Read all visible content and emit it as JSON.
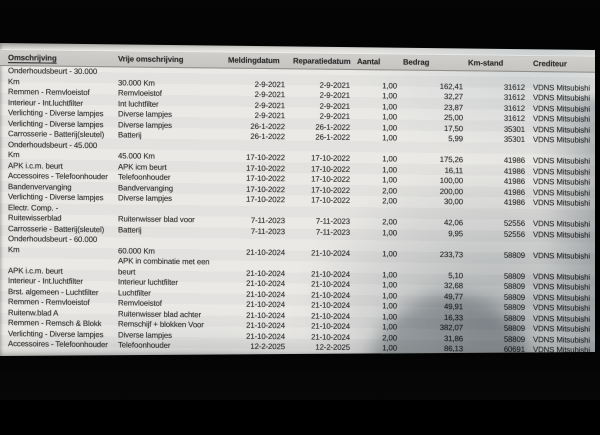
{
  "photo": {
    "colors": {
      "background": "#000000",
      "paper": "#e9e8e5",
      "header_band": "#c8c7c4",
      "text": "#3a3a3a",
      "reflection_shadow": "#36454f",
      "corner_tint": "#ccd1d4"
    }
  },
  "table": {
    "columns": [
      {
        "key": "omschrijving",
        "label": "Omschrijving"
      },
      {
        "key": "vrije",
        "label": "Vrije omschrijving"
      },
      {
        "key": "melding",
        "label": "Meldingdatum"
      },
      {
        "key": "reparatie",
        "label": "Reparatiedatum"
      },
      {
        "key": "aantal",
        "label": "Aantal"
      },
      {
        "key": "bedrag",
        "label": "Bedrag"
      },
      {
        "key": "kmstand",
        "label": "Km-stand"
      },
      {
        "key": "crediteur",
        "label": "Crediteur"
      }
    ],
    "rows": [
      {
        "omschrijving": "Onderhoudsbeurt - 30.000\nKm",
        "vrije": "30.000 Km",
        "melding": "2-9-2021",
        "reparatie": "2-9-2021",
        "aantal": "1,00",
        "bedrag": "162,41",
        "kmstand": "31612",
        "crediteur": "VDNS Mitsubishi"
      },
      {
        "omschrijving": "Remmen - Remvloeistof",
        "vrije": "Remvloeistof",
        "melding": "2-9-2021",
        "reparatie": "2-9-2021",
        "aantal": "1,00",
        "bedrag": "32,27",
        "kmstand": "31612",
        "crediteur": "VDNS Mitsubishi"
      },
      {
        "omschrijving": "Interieur - Int.luchtfilter",
        "vrije": "Int luchtfilter",
        "melding": "2-9-2021",
        "reparatie": "2-9-2021",
        "aantal": "1,00",
        "bedrag": "23,87",
        "kmstand": "31612",
        "crediteur": "VDNS Mitsubishi"
      },
      {
        "omschrijving": "Verlichting - Diverse lampjes",
        "vrije": "Diverse lampjes",
        "melding": "2-9-2021",
        "reparatie": "2-9-2021",
        "aantal": "1,00",
        "bedrag": "25,00",
        "kmstand": "31612",
        "crediteur": "VDNS Mitsubishi"
      },
      {
        "omschrijving": "Verlichting - Diverse lampjes",
        "vrije": "Diverse lampjes",
        "melding": "26-1-2022",
        "reparatie": "26-1-2022",
        "aantal": "1,00",
        "bedrag": "17,50",
        "kmstand": "35301",
        "crediteur": "VDNS Mitsubishi"
      },
      {
        "omschrijving": "Carrosserie - Batterij(sleutel)",
        "vrije": "Batterij",
        "melding": "26-1-2022",
        "reparatie": "26-1-2022",
        "aantal": "1,00",
        "bedrag": "5,99",
        "kmstand": "35301",
        "crediteur": "VDNS Mitsubishi"
      },
      {
        "omschrijving": "Onderhoudsbeurt - 45.000\nKm",
        "vrije": "45.000 Km",
        "melding": "17-10-2022",
        "reparatie": "17-10-2022",
        "aantal": "1,00",
        "bedrag": "175,26",
        "kmstand": "41986",
        "crediteur": "VDNS Mitsubishi"
      },
      {
        "omschrijving": "APK i.c.m. beurt",
        "vrije": "APK icm beurt",
        "melding": "17-10-2022",
        "reparatie": "17-10-2022",
        "aantal": "1,00",
        "bedrag": "16,11",
        "kmstand": "41986",
        "crediteur": "VDNS Mitsubishi"
      },
      {
        "omschrijving": "Accessoires - Telefoonhouder",
        "vrije": "Telefoonhouder",
        "melding": "17-10-2022",
        "reparatie": "17-10-2022",
        "aantal": "1,00",
        "bedrag": "100,00",
        "kmstand": "41986",
        "crediteur": "VDNS Mitsubishi"
      },
      {
        "omschrijving": "Bandenvervanging",
        "vrije": "Bandvervanging",
        "melding": "17-10-2022",
        "reparatie": "17-10-2022",
        "aantal": "2,00",
        "bedrag": "200,00",
        "kmstand": "41986",
        "crediteur": "VDNS Mitsubishi"
      },
      {
        "omschrijving": "Verlichting - Diverse lampjes",
        "vrije": "Diverse lampjes",
        "melding": "17-10-2022",
        "reparatie": "17-10-2022",
        "aantal": "2,00",
        "bedrag": "30,00",
        "kmstand": "41986",
        "crediteur": "VDNS Mitsubishi"
      },
      {
        "omschrijving": "Electr. Comp. -\nRuitewisserblad",
        "vrije": "Ruitenwisser blad voor",
        "melding": "7-11-2023",
        "reparatie": "7-11-2023",
        "aantal": "2,00",
        "bedrag": "42,06",
        "kmstand": "52556",
        "crediteur": "VDNS Mitsubishi"
      },
      {
        "omschrijving": "Carrosserie - Batterij(sleutel)",
        "vrije": "Batterij",
        "melding": "7-11-2023",
        "reparatie": "7-11-2023",
        "aantal": "1,00",
        "bedrag": "9,95",
        "kmstand": "52556",
        "crediteur": "VDNS Mitsubishi"
      },
      {
        "omschrijving": "Onderhoudsbeurt - 60.000\nKm",
        "vrije": "60.000 Km",
        "melding": "21-10-2024",
        "reparatie": "21-10-2024",
        "aantal": "1,00",
        "bedrag": "233,73",
        "kmstand": "58809",
        "crediteur": "VDNS Mitsubishi"
      },
      {
        "omschrijving": "APK i.c.m. beurt",
        "vrije": "APK in combinatie met een\nbeurt",
        "melding": "21-10-2024",
        "reparatie": "21-10-2024",
        "aantal": "1,00",
        "bedrag": "5,10",
        "kmstand": "58809",
        "crediteur": "VDNS Mitsubishi"
      },
      {
        "omschrijving": "Interieur - Int.luchtfilter",
        "vrije": "Interieur luchtfilter",
        "melding": "21-10-2024",
        "reparatie": "21-10-2024",
        "aantal": "1,00",
        "bedrag": "32,68",
        "kmstand": "58809",
        "crediteur": "VDNS Mitsubishi"
      },
      {
        "omschrijving": "Brst. algemeen - Luchtfilter",
        "vrije": "Luchtfilter",
        "melding": "21-10-2024",
        "reparatie": "21-10-2024",
        "aantal": "1,00",
        "bedrag": "49,77",
        "kmstand": "58809",
        "crediteur": "VDNS Mitsubishi"
      },
      {
        "omschrijving": "Remmen - Remvloeistof",
        "vrije": "Remvloeistof",
        "melding": "21-10-2024",
        "reparatie": "21-10-2024",
        "aantal": "1,00",
        "bedrag": "49,91",
        "kmstand": "58809",
        "crediteur": "VDNS Mitsubishi"
      },
      {
        "omschrijving": "Ruitenw.blad A",
        "vrije": "Ruitenwisser blad achter",
        "melding": "21-10-2024",
        "reparatie": "21-10-2024",
        "aantal": "1,00",
        "bedrag": "16,33",
        "kmstand": "58809",
        "crediteur": "VDNS Mitsubishi"
      },
      {
        "omschrijving": "Remmen - Remsch & Blokk",
        "vrije": "Remschijf + blokken Voor",
        "melding": "21-10-2024",
        "reparatie": "21-10-2024",
        "aantal": "1,00",
        "bedrag": "382,07",
        "kmstand": "58809",
        "crediteur": "VDNS Mitsubishi"
      },
      {
        "omschrijving": "Verlichting - Diverse lampjes",
        "vrije": "Diverse lampjes",
        "melding": "21-10-2024",
        "reparatie": "21-10-2024",
        "aantal": "2,00",
        "bedrag": "31,86",
        "kmstand": "58809",
        "crediteur": "VDNS Mitsubishi"
      },
      {
        "omschrijving": "Accessoires - Telefoonhouder",
        "vrije": "Telefoonhouder",
        "melding": "12-2-2025",
        "reparatie": "12-2-2025",
        "aantal": "1,00",
        "bedrag": "86,13",
        "kmstand": "60691",
        "crediteur": "VDNS Mitsubishi"
      }
    ]
  }
}
